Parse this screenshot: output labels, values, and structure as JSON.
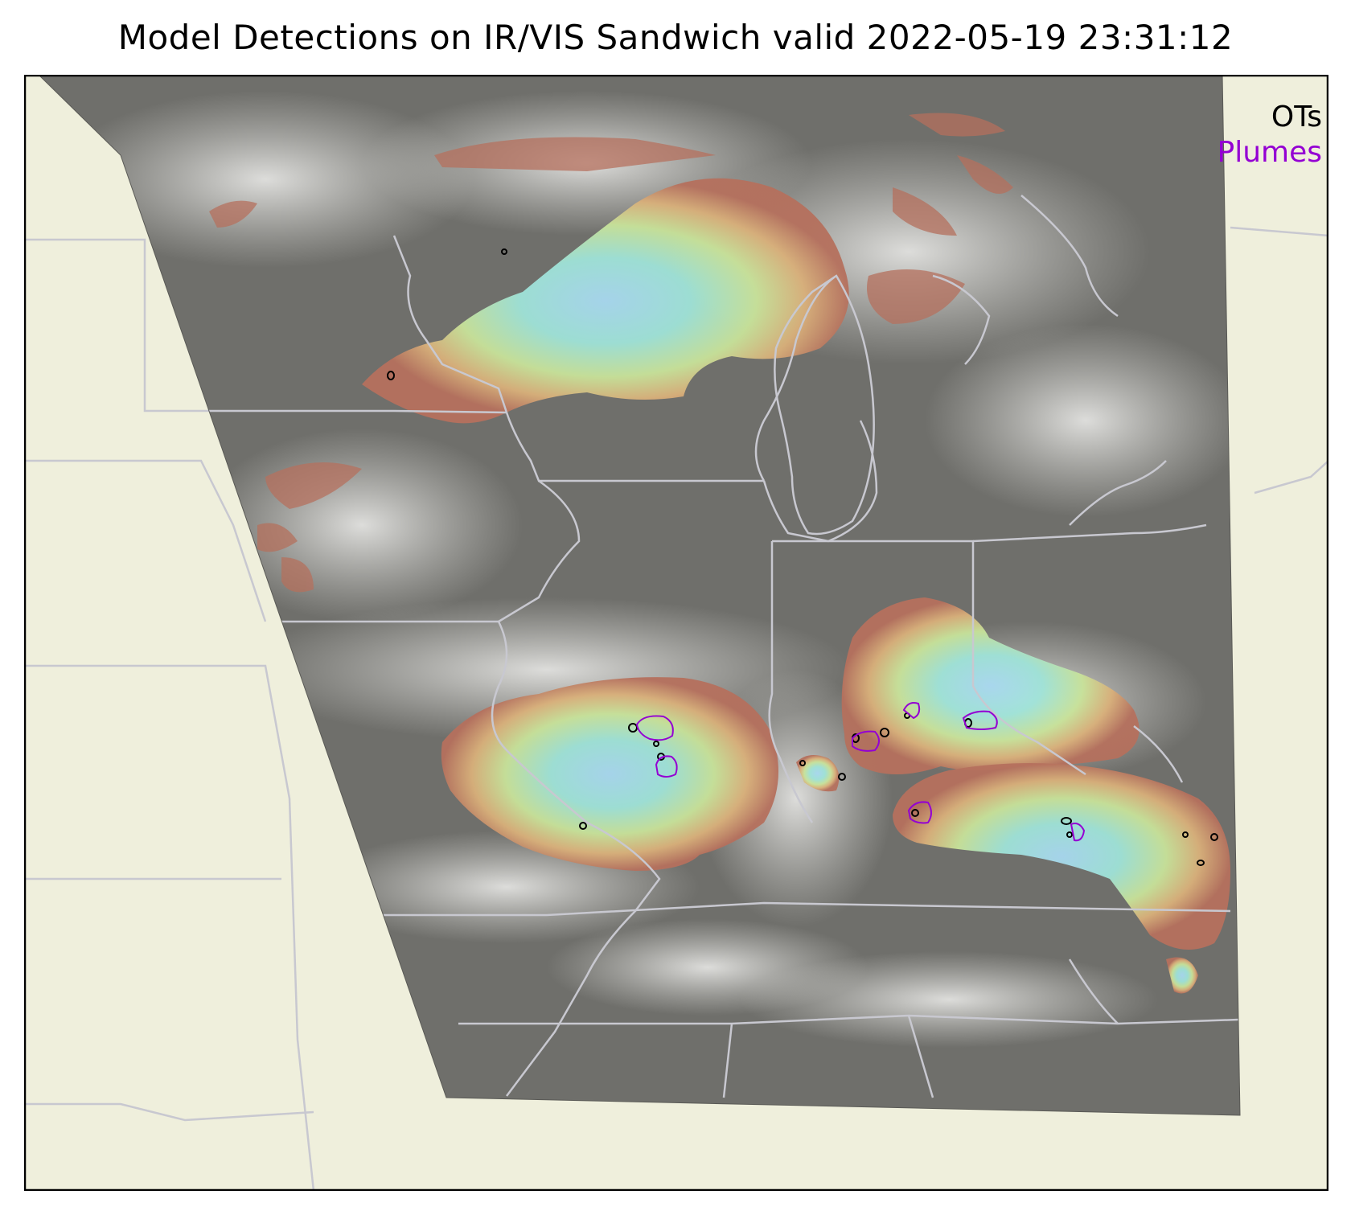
{
  "title": "Model Detections on IR/VIS Sandwich valid 2022-05-19 23:31:12",
  "legend": {
    "entries": [
      {
        "label": "OTs",
        "color": "#000000"
      },
      {
        "label": "Plumes",
        "color": "#9400d3"
      }
    ]
  },
  "colors": {
    "land": "#efefdc",
    "satellite_gray": "#6f6f6b",
    "cloud_white": "#e8e8e6",
    "boundary": "#c8c8d0",
    "ot_contour": "#000000",
    "plume_contour": "#9400d3",
    "anvil_cold": "#9fe3e0",
    "anvil_mid": "#c8e39a",
    "anvil_edge": "#b5705d"
  }
}
